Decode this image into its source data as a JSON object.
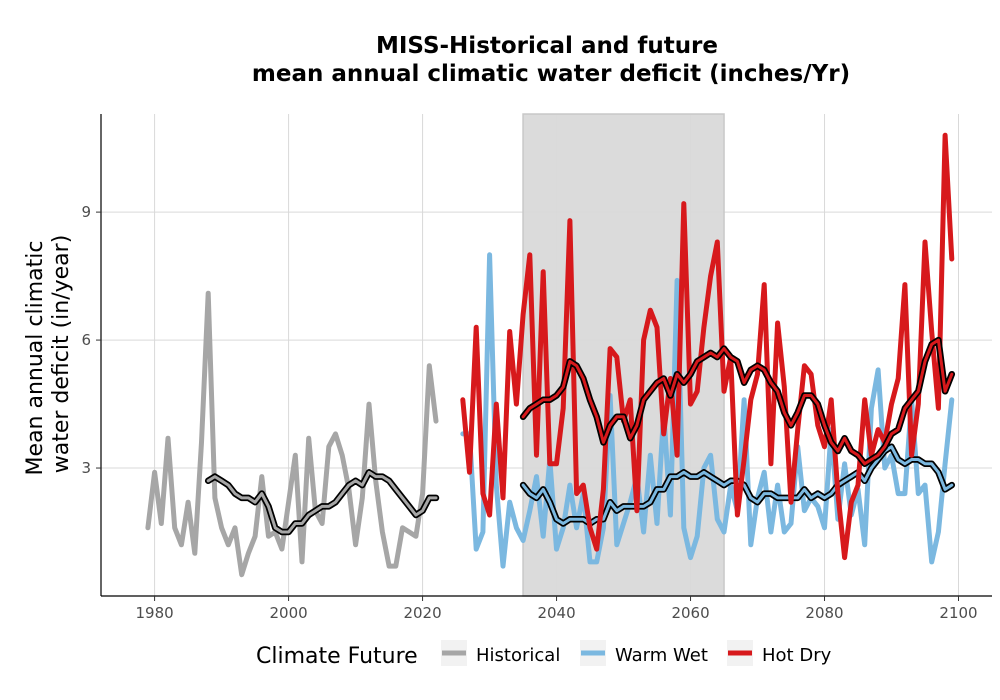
{
  "chart_data": {
    "type": "line",
    "title_line1": "MISS-Historical and future",
    "title_line2": "mean annual climatic water deficit (inches/Yr)",
    "ylabel_line1": "Mean annual climatic",
    "ylabel_line2": "water deficit (in/year)",
    "xlabel": "",
    "xlim": [
      1972,
      2105
    ],
    "ylim": [
      0,
      11.3
    ],
    "x_ticks": [
      "1980",
      "2000",
      "2020",
      "2040",
      "2060",
      "2080",
      "2100"
    ],
    "y_ticks": [
      "3",
      "6",
      "9"
    ],
    "shaded_period": [
      2035,
      2065
    ],
    "grid": true,
    "legend": {
      "title": "Climate Future",
      "position": "bottom",
      "entries": [
        {
          "label": "Historical",
          "color": "#a6a6a6"
        },
        {
          "label": "Warm Wet",
          "color": "#7bb8e0"
        },
        {
          "label": "Hot Dry",
          "color": "#d7191c"
        }
      ]
    },
    "series": [
      {
        "name": "Historical",
        "color": "#a6a6a6",
        "x": [
          1979,
          1980,
          1981,
          1982,
          1983,
          1984,
          1985,
          1986,
          1987,
          1988,
          1989,
          1990,
          1991,
          1992,
          1993,
          1994,
          1995,
          1996,
          1997,
          1998,
          1999,
          2000,
          2001,
          2002,
          2003,
          2004,
          2005,
          2006,
          2007,
          2008,
          2009,
          2010,
          2011,
          2012,
          2013,
          2014,
          2015,
          2016,
          2017,
          2018,
          2019,
          2020,
          2021,
          2022
        ],
        "y": [
          1.6,
          2.9,
          1.7,
          3.7,
          1.6,
          1.2,
          2.2,
          1.0,
          3.6,
          7.1,
          2.3,
          1.6,
          1.2,
          1.6,
          0.5,
          1.0,
          1.4,
          2.8,
          1.4,
          1.5,
          1.1,
          2.2,
          3.3,
          0.8,
          3.7,
          2.0,
          1.7,
          3.5,
          3.8,
          3.3,
          2.5,
          1.2,
          2.3,
          4.5,
          2.7,
          1.5,
          0.7,
          0.7,
          1.6,
          1.5,
          1.4,
          2.4,
          5.4,
          4.1
        ]
      },
      {
        "name": "Historical smooth",
        "color": "#a6a6a6",
        "smooth": true,
        "x": [
          1988,
          1989,
          1990,
          1991,
          1992,
          1993,
          1994,
          1995,
          1996,
          1997,
          1998,
          1999,
          2000,
          2001,
          2002,
          2003,
          2004,
          2005,
          2006,
          2007,
          2008,
          2009,
          2010,
          2011,
          2012,
          2013,
          2014,
          2015,
          2016,
          2017,
          2018,
          2019,
          2020,
          2021,
          2022
        ],
        "y": [
          2.7,
          2.8,
          2.7,
          2.6,
          2.4,
          2.3,
          2.3,
          2.2,
          2.4,
          2.1,
          1.6,
          1.5,
          1.5,
          1.7,
          1.7,
          1.9,
          2.0,
          2.1,
          2.1,
          2.2,
          2.4,
          2.6,
          2.7,
          2.6,
          2.9,
          2.8,
          2.8,
          2.7,
          2.5,
          2.3,
          2.1,
          1.9,
          2.0,
          2.3,
          2.3
        ]
      },
      {
        "name": "Warm Wet",
        "color": "#7bb8e0",
        "x": [
          2026,
          2027,
          2028,
          2029,
          2030,
          2031,
          2032,
          2033,
          2034,
          2035,
          2036,
          2037,
          2038,
          2039,
          2040,
          2041,
          2042,
          2043,
          2044,
          2045,
          2046,
          2047,
          2048,
          2049,
          2050,
          2051,
          2052,
          2053,
          2054,
          2055,
          2056,
          2057,
          2058,
          2059,
          2060,
          2061,
          2062,
          2063,
          2064,
          2065,
          2066,
          2067,
          2068,
          2069,
          2070,
          2071,
          2072,
          2073,
          2074,
          2075,
          2076,
          2077,
          2078,
          2079,
          2080,
          2081,
          2082,
          2083,
          2084,
          2085,
          2086,
          2087,
          2088,
          2089,
          2090,
          2091,
          2092,
          2093,
          2094,
          2095,
          2096,
          2097,
          2098,
          2099
        ],
        "y": [
          3.8,
          3.8,
          1.1,
          1.5,
          8.0,
          2.6,
          0.7,
          2.2,
          1.6,
          1.3,
          2.0,
          2.8,
          1.4,
          3.2,
          1.1,
          1.6,
          2.6,
          1.6,
          2.4,
          0.8,
          0.8,
          1.6,
          4.7,
          1.2,
          1.7,
          2.2,
          2.8,
          1.5,
          3.3,
          1.7,
          4.3,
          1.9,
          7.4,
          1.6,
          0.9,
          1.4,
          3.0,
          3.3,
          1.8,
          1.5,
          2.6,
          2.0,
          4.6,
          1.2,
          2.3,
          2.9,
          1.5,
          2.6,
          1.5,
          1.7,
          3.5,
          2.0,
          2.3,
          2.1,
          1.6,
          3.9,
          1.8,
          3.1,
          1.9,
          2.5,
          1.2,
          4.4,
          5.3,
          3.0,
          3.3,
          2.4,
          2.4,
          4.6,
          2.4,
          2.6,
          0.8,
          1.5,
          3.1,
          4.6
        ]
      },
      {
        "name": "Warm Wet smooth",
        "color": "#7bb8e0",
        "smooth": true,
        "x": [
          2035,
          2036,
          2037,
          2038,
          2039,
          2040,
          2041,
          2042,
          2043,
          2044,
          2045,
          2046,
          2047,
          2048,
          2049,
          2050,
          2051,
          2052,
          2053,
          2054,
          2055,
          2056,
          2057,
          2058,
          2059,
          2060,
          2061,
          2062,
          2063,
          2064,
          2065,
          2066,
          2067,
          2068,
          2069,
          2070,
          2071,
          2072,
          2073,
          2074,
          2075,
          2076,
          2077,
          2078,
          2079,
          2080,
          2081,
          2082,
          2083,
          2084,
          2085,
          2086,
          2087,
          2088,
          2089,
          2090,
          2091,
          2092,
          2093,
          2094,
          2095,
          2096,
          2097,
          2098,
          2099
        ],
        "y": [
          2.6,
          2.4,
          2.3,
          2.5,
          2.2,
          1.8,
          1.7,
          1.8,
          1.8,
          1.8,
          1.7,
          1.8,
          1.8,
          2.2,
          2.0,
          2.1,
          2.1,
          2.1,
          2.1,
          2.2,
          2.5,
          2.5,
          2.8,
          2.8,
          2.9,
          2.8,
          2.8,
          2.9,
          2.8,
          2.7,
          2.6,
          2.7,
          2.7,
          2.6,
          2.3,
          2.2,
          2.4,
          2.4,
          2.3,
          2.3,
          2.3,
          2.3,
          2.5,
          2.3,
          2.4,
          2.3,
          2.4,
          2.6,
          2.7,
          2.8,
          2.9,
          2.7,
          3.0,
          3.2,
          3.4,
          3.5,
          3.2,
          3.1,
          3.2,
          3.2,
          3.1,
          3.1,
          2.9,
          2.5,
          2.6
        ]
      },
      {
        "name": "Hot Dry",
        "color": "#d7191c",
        "x": [
          2026,
          2027,
          2028,
          2029,
          2030,
          2031,
          2032,
          2033,
          2034,
          2035,
          2036,
          2037,
          2038,
          2039,
          2040,
          2041,
          2042,
          2043,
          2044,
          2045,
          2046,
          2047,
          2048,
          2049,
          2050,
          2051,
          2052,
          2053,
          2054,
          2055,
          2056,
          2057,
          2058,
          2059,
          2060,
          2061,
          2062,
          2063,
          2064,
          2065,
          2066,
          2067,
          2068,
          2069,
          2070,
          2071,
          2072,
          2073,
          2074,
          2075,
          2076,
          2077,
          2078,
          2079,
          2080,
          2081,
          2082,
          2083,
          2084,
          2085,
          2086,
          2087,
          2088,
          2089,
          2090,
          2091,
          2092,
          2093,
          2094,
          2095,
          2096,
          2097,
          2098,
          2099
        ],
        "y": [
          4.6,
          2.9,
          6.3,
          2.4,
          1.9,
          4.5,
          2.3,
          6.2,
          4.5,
          6.6,
          8.0,
          3.3,
          7.6,
          3.1,
          3.1,
          4.4,
          8.8,
          2.4,
          2.6,
          1.6,
          1.1,
          2.5,
          5.8,
          5.6,
          4.1,
          4.6,
          2.0,
          6.0,
          6.7,
          6.3,
          3.8,
          5.1,
          3.3,
          9.2,
          4.5,
          4.8,
          6.3,
          7.5,
          8.3,
          4.8,
          5.6,
          1.9,
          3.2,
          4.6,
          5.2,
          7.3,
          3.1,
          6.4,
          4.9,
          2.2,
          3.9,
          5.4,
          5.2,
          4.0,
          3.5,
          4.6,
          2.4,
          0.9,
          2.2,
          2.6,
          4.6,
          3.3,
          3.9,
          3.6,
          4.5,
          5.1,
          7.3,
          3.3,
          4.5,
          8.3,
          6.2,
          4.4,
          10.8,
          7.9
        ]
      },
      {
        "name": "Hot Dry smooth",
        "color": "#d7191c",
        "smooth": true,
        "x": [
          2035,
          2036,
          2037,
          2038,
          2039,
          2040,
          2041,
          2042,
          2043,
          2044,
          2045,
          2046,
          2047,
          2048,
          2049,
          2050,
          2051,
          2052,
          2053,
          2054,
          2055,
          2056,
          2057,
          2058,
          2059,
          2060,
          2061,
          2062,
          2063,
          2064,
          2065,
          2066,
          2067,
          2068,
          2069,
          2070,
          2071,
          2072,
          2073,
          2074,
          2075,
          2076,
          2077,
          2078,
          2079,
          2080,
          2081,
          2082,
          2083,
          2084,
          2085,
          2086,
          2087,
          2088,
          2089,
          2090,
          2091,
          2092,
          2093,
          2094,
          2095,
          2096,
          2097,
          2098,
          2099
        ],
        "y": [
          4.2,
          4.4,
          4.5,
          4.6,
          4.6,
          4.7,
          4.9,
          5.5,
          5.4,
          5.1,
          4.6,
          4.2,
          3.6,
          4.0,
          4.2,
          4.2,
          3.7,
          4.0,
          4.6,
          4.8,
          5.0,
          5.1,
          4.7,
          5.2,
          5.0,
          5.2,
          5.5,
          5.6,
          5.7,
          5.6,
          5.8,
          5.6,
          5.5,
          5.0,
          5.3,
          5.4,
          5.3,
          5.0,
          4.8,
          4.3,
          4.0,
          4.3,
          4.7,
          4.7,
          4.5,
          4.0,
          3.6,
          3.4,
          3.7,
          3.4,
          3.3,
          3.1,
          3.2,
          3.3,
          3.5,
          3.8,
          3.9,
          4.4,
          4.6,
          4.8,
          5.5,
          5.9,
          6.0,
          4.8,
          5.2
        ]
      }
    ]
  }
}
